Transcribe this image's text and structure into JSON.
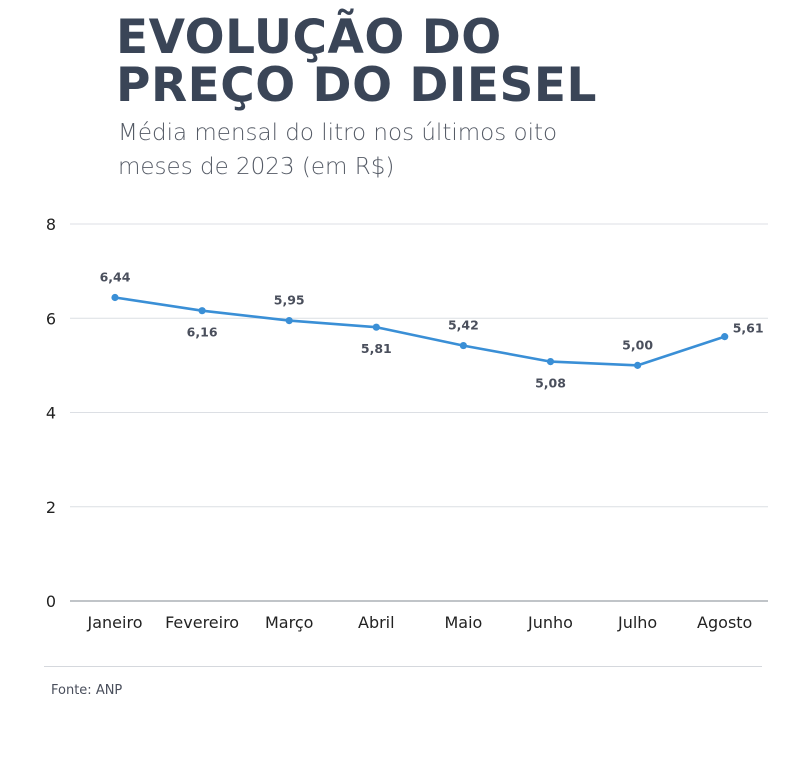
{
  "header": {
    "title_line1": "EVOLUÇÃO DO",
    "title_line2": "PREÇO DO DIESEL",
    "subtitle": "Média mensal do litro nos últimos oito meses de 2023 (em R$)"
  },
  "footer": {
    "source": "Fonte: ANP"
  },
  "colors": {
    "line": "#3a8fd6",
    "title": "#3a4557",
    "grid": "#dcdfe4"
  },
  "chart_data": {
    "type": "line",
    "categories": [
      "Janeiro",
      "Fevereiro",
      "Março",
      "Abril",
      "Maio",
      "Junho",
      "Julho",
      "Agosto"
    ],
    "series": [
      {
        "values": [
          6.44,
          6.16,
          5.95,
          5.81,
          5.42,
          5.08,
          5.0,
          5.61
        ],
        "labels": [
          "6,44",
          "6,16",
          "5,95",
          "5,81",
          "5,42",
          "5,08",
          "5,00",
          "5,61"
        ],
        "label_position": [
          "above",
          "below",
          "above",
          "below",
          "above",
          "below",
          "above",
          "above"
        ]
      }
    ],
    "yticks": [
      0,
      2,
      4,
      6,
      8
    ],
    "ylim": [
      0,
      8
    ],
    "grid": true,
    "legend": "none"
  }
}
